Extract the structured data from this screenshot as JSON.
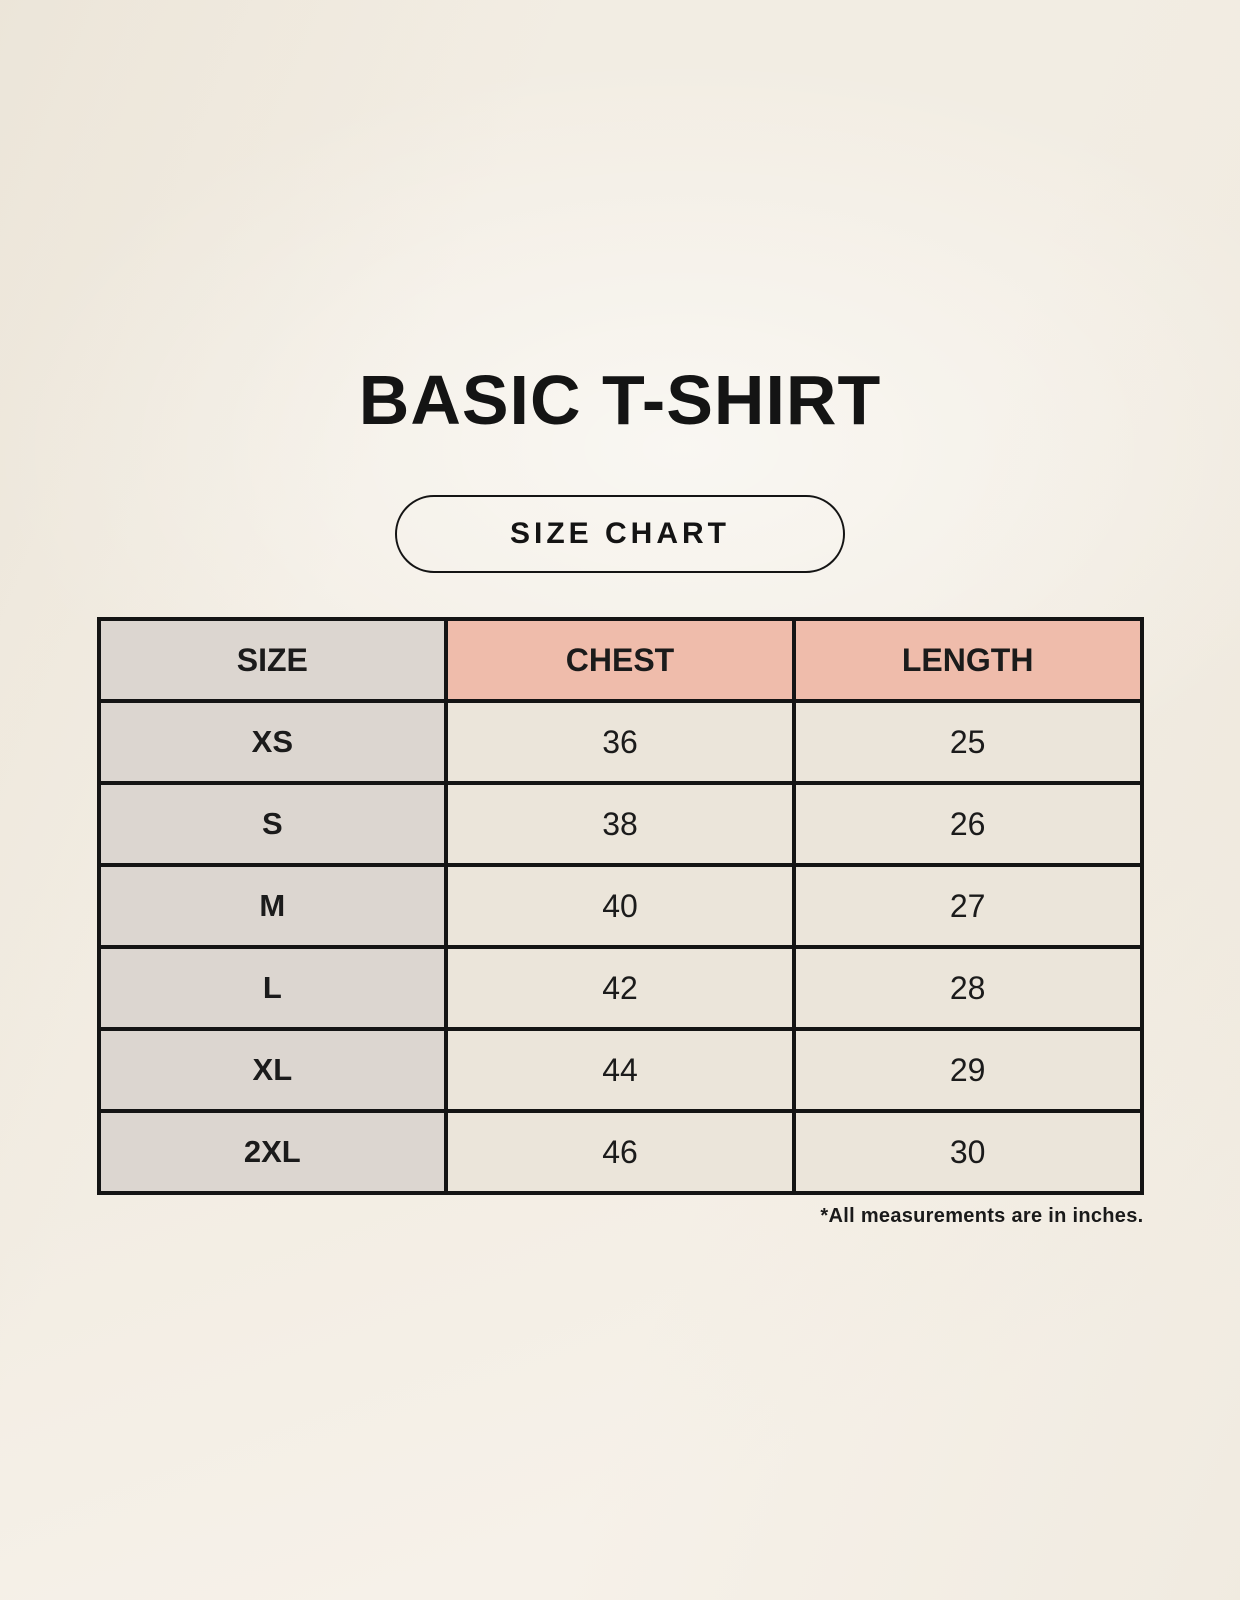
{
  "page": {
    "background_color": "#f6f1e9"
  },
  "header": {
    "title": "BASIC T-SHIRT",
    "badge_label": "SIZE CHART"
  },
  "size_table": {
    "columns": [
      "SIZE",
      "CHEST",
      "LENGTH"
    ],
    "rows": [
      {
        "size": "XS",
        "chest": "36",
        "length": "25"
      },
      {
        "size": "S",
        "chest": "38",
        "length": "26"
      },
      {
        "size": "M",
        "chest": "40",
        "length": "27"
      },
      {
        "size": "L",
        "chest": "42",
        "length": "28"
      },
      {
        "size": "XL",
        "chest": "44",
        "length": "29"
      },
      {
        "size": "2XL",
        "chest": "46",
        "length": "30"
      }
    ],
    "footnote": "*All measurements are in inches.",
    "colors": {
      "accent_header": "#efbcab",
      "size_column": "#dcd6d0",
      "data_cell": "#ebe5da",
      "border": "#141414",
      "text": "#141414"
    }
  },
  "chart_data": {
    "type": "table",
    "title": "BASIC T-SHIRT",
    "subtitle": "SIZE CHART",
    "columns": [
      "SIZE",
      "CHEST",
      "LENGTH"
    ],
    "rows": [
      [
        "XS",
        36,
        25
      ],
      [
        "S",
        38,
        26
      ],
      [
        "M",
        40,
        27
      ],
      [
        "L",
        42,
        28
      ],
      [
        "XL",
        44,
        29
      ],
      [
        "2XL",
        46,
        30
      ]
    ],
    "units": "inches",
    "footnote": "*All measurements are in inches."
  }
}
